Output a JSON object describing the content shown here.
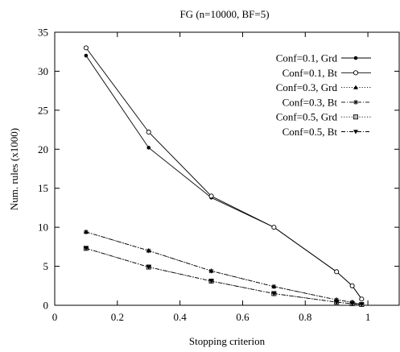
{
  "chart_data": {
    "type": "line",
    "title": "FG (n=10000, BF=5)",
    "xlabel": "Stopping criterion",
    "ylabel": "Num. rules (x1000)",
    "xlim": [
      0,
      1.1
    ],
    "ylim": [
      0,
      35
    ],
    "xticks": [
      "0",
      "0.2",
      "0.4",
      "0.6",
      "0.8",
      "1"
    ],
    "yticks": [
      "0",
      "5",
      "10",
      "15",
      "20",
      "25",
      "30",
      "35"
    ],
    "grid": false,
    "legend_position": "top-right",
    "series": [
      {
        "name": "Conf=0.1, Grd",
        "marker": "filled-circle",
        "dash": "solid",
        "x": [
          0.1,
          0.3,
          0.5,
          0.7,
          0.9,
          0.95,
          0.98
        ],
        "y": [
          32.0,
          20.2,
          13.8,
          10.0,
          4.3,
          2.5,
          0.8
        ]
      },
      {
        "name": "Conf=0.1, Bt",
        "marker": "open-circle",
        "dash": "solid",
        "x": [
          0.1,
          0.3,
          0.5,
          0.7,
          0.9,
          0.95,
          0.98
        ],
        "y": [
          33.0,
          22.2,
          14.0,
          10.0,
          4.3,
          2.5,
          0.8
        ]
      },
      {
        "name": "Conf=0.3, Grd",
        "marker": "filled-triangle",
        "dash": "dotted",
        "x": [
          0.1,
          0.3,
          0.5,
          0.7,
          0.9,
          0.95,
          0.98
        ],
        "y": [
          9.4,
          7.0,
          4.4,
          2.4,
          0.7,
          0.4,
          0.1
        ]
      },
      {
        "name": "Conf=0.3, Bt",
        "marker": "star",
        "dash": "dashdot",
        "x": [
          0.1,
          0.3,
          0.5,
          0.7,
          0.9,
          0.95,
          0.98
        ],
        "y": [
          9.4,
          7.0,
          4.4,
          2.4,
          0.7,
          0.4,
          0.1
        ]
      },
      {
        "name": "Conf=0.5, Grd",
        "marker": "dotted-square",
        "dash": "dotted",
        "x": [
          0.1,
          0.3,
          0.5,
          0.7,
          0.9,
          0.95,
          0.98
        ],
        "y": [
          7.3,
          4.9,
          3.1,
          1.5,
          0.4,
          0.2,
          0.1
        ]
      },
      {
        "name": "Conf=0.5, Bt",
        "marker": "filled-triangle-down",
        "dash": "dashdot",
        "x": [
          0.1,
          0.3,
          0.5,
          0.7,
          0.9,
          0.95,
          0.98
        ],
        "y": [
          7.3,
          4.9,
          3.1,
          1.5,
          0.4,
          0.2,
          0.1
        ]
      }
    ]
  }
}
